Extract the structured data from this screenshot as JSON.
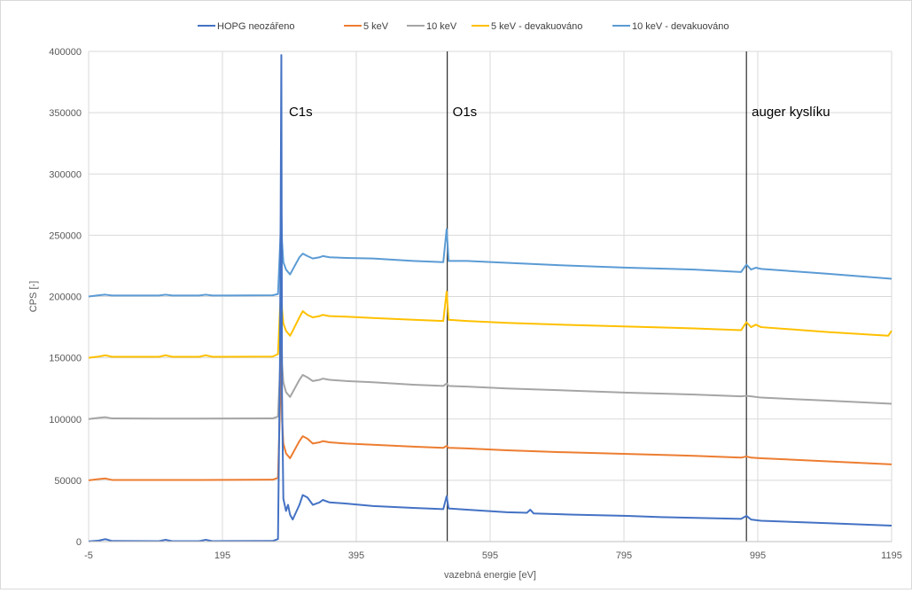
{
  "chart_data": {
    "type": "line",
    "title": "",
    "xlabel": "vazebná energie [eV]",
    "ylabel": "CPS [-]",
    "xlim": [
      -5,
      1195
    ],
    "ylim": [
      0,
      400000
    ],
    "xticks": [
      -5,
      195,
      395,
      595,
      795,
      995,
      1195
    ],
    "yticks": [
      0,
      50000,
      100000,
      150000,
      200000,
      250000,
      300000,
      350000,
      400000
    ],
    "grid": true,
    "legend_position": "top",
    "annotations": [
      {
        "text": "C1s",
        "x": 285
      },
      {
        "text": "O1s",
        "x": 531
      },
      {
        "text": "auger kyslíku",
        "x": 978
      }
    ],
    "series": [
      {
        "name": "HOPG neozářeno",
        "color": "#4472C4",
        "offset": 0,
        "points": [
          [
            -5,
            200
          ],
          [
            10,
            800
          ],
          [
            20,
            2000
          ],
          [
            30,
            500
          ],
          [
            100,
            400
          ],
          [
            110,
            1500
          ],
          [
            120,
            400
          ],
          [
            160,
            400
          ],
          [
            170,
            1500
          ],
          [
            180,
            400
          ],
          [
            270,
            500
          ],
          [
            278,
            2000
          ],
          [
            281,
            150000
          ],
          [
            283,
            397000
          ],
          [
            284,
            120000
          ],
          [
            286,
            35000
          ],
          [
            290,
            25000
          ],
          [
            293,
            30000
          ],
          [
            296,
            22000
          ],
          [
            300,
            18000
          ],
          [
            310,
            30000
          ],
          [
            315,
            38000
          ],
          [
            322,
            36000
          ],
          [
            330,
            30000
          ],
          [
            340,
            32000
          ],
          [
            345,
            34000
          ],
          [
            355,
            32000
          ],
          [
            380,
            31000
          ],
          [
            420,
            29000
          ],
          [
            480,
            27500
          ],
          [
            525,
            26500
          ],
          [
            530,
            37000
          ],
          [
            533,
            27000
          ],
          [
            560,
            26000
          ],
          [
            620,
            24000
          ],
          [
            650,
            23500
          ],
          [
            655,
            26000
          ],
          [
            660,
            23000
          ],
          [
            720,
            22000
          ],
          [
            800,
            21000
          ],
          [
            850,
            20000
          ],
          [
            970,
            18500
          ],
          [
            978,
            21000
          ],
          [
            985,
            18000
          ],
          [
            1000,
            17000
          ],
          [
            1100,
            15000
          ],
          [
            1195,
            13000
          ]
        ]
      },
      {
        "name": "5 keV",
        "color": "#ED7D31",
        "offset": 50000,
        "points": [
          [
            -5,
            50000
          ],
          [
            10,
            51000
          ],
          [
            20,
            51500
          ],
          [
            30,
            50300
          ],
          [
            100,
            50300
          ],
          [
            160,
            50300
          ],
          [
            270,
            50500
          ],
          [
            278,
            52000
          ],
          [
            281,
            110000
          ],
          [
            283,
            160000
          ],
          [
            284,
            100000
          ],
          [
            286,
            80000
          ],
          [
            290,
            72000
          ],
          [
            293,
            70000
          ],
          [
            296,
            68000
          ],
          [
            300,
            72000
          ],
          [
            310,
            82000
          ],
          [
            315,
            86000
          ],
          [
            322,
            84000
          ],
          [
            330,
            80000
          ],
          [
            340,
            81000
          ],
          [
            345,
            82000
          ],
          [
            355,
            81000
          ],
          [
            380,
            80000
          ],
          [
            420,
            79000
          ],
          [
            480,
            77500
          ],
          [
            525,
            76500
          ],
          [
            530,
            78000
          ],
          [
            533,
            76500
          ],
          [
            560,
            76000
          ],
          [
            620,
            74500
          ],
          [
            700,
            73000
          ],
          [
            800,
            71500
          ],
          [
            900,
            70000
          ],
          [
            970,
            68500
          ],
          [
            978,
            69500
          ],
          [
            985,
            68500
          ],
          [
            1000,
            68000
          ],
          [
            1100,
            65500
          ],
          [
            1195,
            63000
          ]
        ]
      },
      {
        "name": "10 keV",
        "color": "#A5A5A5",
        "offset": 100000,
        "points": [
          [
            -5,
            100000
          ],
          [
            10,
            101000
          ],
          [
            20,
            101500
          ],
          [
            30,
            100500
          ],
          [
            100,
            100400
          ],
          [
            160,
            100400
          ],
          [
            270,
            100500
          ],
          [
            278,
            102000
          ],
          [
            281,
            140000
          ],
          [
            283,
            180000
          ],
          [
            284,
            145000
          ],
          [
            286,
            130000
          ],
          [
            290,
            122000
          ],
          [
            293,
            120000
          ],
          [
            296,
            118000
          ],
          [
            300,
            122000
          ],
          [
            310,
            132000
          ],
          [
            315,
            136000
          ],
          [
            322,
            134000
          ],
          [
            330,
            131000
          ],
          [
            340,
            132000
          ],
          [
            345,
            133000
          ],
          [
            355,
            132000
          ],
          [
            380,
            131000
          ],
          [
            420,
            130000
          ],
          [
            480,
            128000
          ],
          [
            525,
            127000
          ],
          [
            530,
            129000
          ],
          [
            533,
            127000
          ],
          [
            560,
            126500
          ],
          [
            620,
            125000
          ],
          [
            700,
            123500
          ],
          [
            800,
            121500
          ],
          [
            900,
            120000
          ],
          [
            970,
            118500
          ],
          [
            978,
            119000
          ],
          [
            985,
            118500
          ],
          [
            1000,
            117500
          ],
          [
            1100,
            115000
          ],
          [
            1195,
            112500
          ]
        ]
      },
      {
        "name": "5 keV - devakuováno",
        "color": "#FFC000",
        "offset": 150000,
        "points": [
          [
            -5,
            150000
          ],
          [
            10,
            151000
          ],
          [
            20,
            152000
          ],
          [
            30,
            150800
          ],
          [
            100,
            150800
          ],
          [
            110,
            152000
          ],
          [
            120,
            150800
          ],
          [
            160,
            150800
          ],
          [
            170,
            152000
          ],
          [
            180,
            150800
          ],
          [
            270,
            151000
          ],
          [
            278,
            153000
          ],
          [
            281,
            190000
          ],
          [
            283,
            210000
          ],
          [
            284,
            190000
          ],
          [
            286,
            178000
          ],
          [
            290,
            172000
          ],
          [
            293,
            170000
          ],
          [
            296,
            168000
          ],
          [
            300,
            172000
          ],
          [
            310,
            183000
          ],
          [
            315,
            188000
          ],
          [
            322,
            185000
          ],
          [
            330,
            183000
          ],
          [
            340,
            184000
          ],
          [
            345,
            185000
          ],
          [
            355,
            184000
          ],
          [
            380,
            183500
          ],
          [
            420,
            182500
          ],
          [
            480,
            181000
          ],
          [
            525,
            180000
          ],
          [
            530,
            204000
          ],
          [
            533,
            181000
          ],
          [
            560,
            180000
          ],
          [
            620,
            178500
          ],
          [
            700,
            177000
          ],
          [
            800,
            175500
          ],
          [
            900,
            174000
          ],
          [
            970,
            172500
          ],
          [
            978,
            179000
          ],
          [
            985,
            175000
          ],
          [
            992,
            177000
          ],
          [
            1000,
            175000
          ],
          [
            1100,
            171000
          ],
          [
            1190,
            168000
          ],
          [
            1195,
            172000
          ]
        ]
      },
      {
        "name": "10 keV - devakuováno",
        "color": "#5B9BD5",
        "offset": 200000,
        "points": [
          [
            -5,
            200000
          ],
          [
            10,
            201000
          ],
          [
            20,
            201500
          ],
          [
            30,
            200800
          ],
          [
            100,
            200800
          ],
          [
            110,
            201500
          ],
          [
            120,
            200800
          ],
          [
            160,
            200800
          ],
          [
            170,
            201500
          ],
          [
            180,
            200800
          ],
          [
            270,
            201000
          ],
          [
            278,
            202000
          ],
          [
            281,
            240000
          ],
          [
            283,
            270000
          ],
          [
            284,
            245000
          ],
          [
            286,
            228000
          ],
          [
            290,
            222000
          ],
          [
            293,
            220000
          ],
          [
            296,
            218000
          ],
          [
            300,
            222000
          ],
          [
            310,
            232000
          ],
          [
            315,
            235000
          ],
          [
            322,
            233000
          ],
          [
            330,
            231000
          ],
          [
            340,
            232000
          ],
          [
            345,
            233000
          ],
          [
            355,
            232000
          ],
          [
            380,
            231500
          ],
          [
            420,
            231000
          ],
          [
            480,
            229000
          ],
          [
            525,
            228000
          ],
          [
            530,
            255000
          ],
          [
            533,
            229000
          ],
          [
            560,
            229000
          ],
          [
            620,
            227500
          ],
          [
            700,
            225500
          ],
          [
            800,
            223500
          ],
          [
            900,
            222000
          ],
          [
            970,
            220000
          ],
          [
            978,
            226000
          ],
          [
            985,
            222000
          ],
          [
            992,
            223500
          ],
          [
            1000,
            222500
          ],
          [
            1100,
            218500
          ],
          [
            1195,
            214500
          ]
        ]
      }
    ]
  }
}
